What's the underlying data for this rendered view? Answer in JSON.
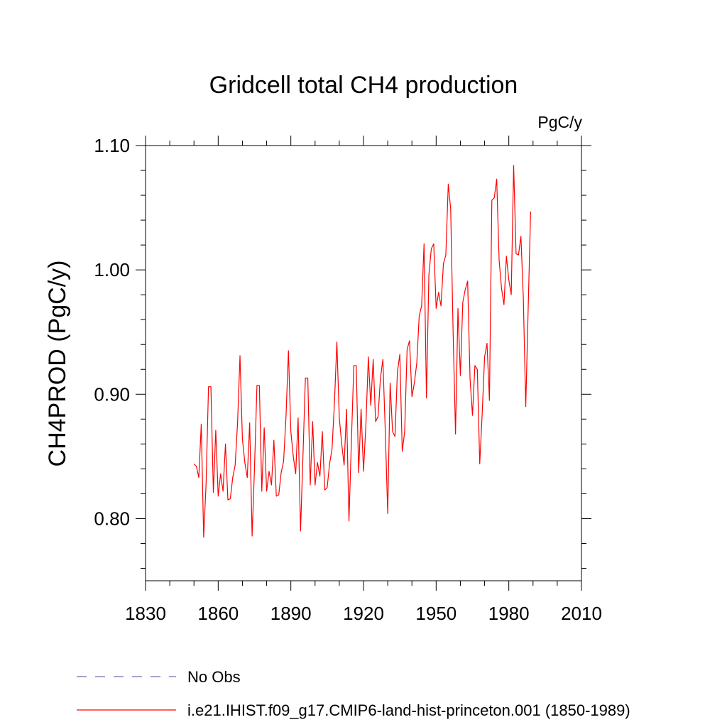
{
  "chart_data": {
    "type": "line",
    "title": "Gridcell total CH4 production",
    "units_label": "PgC/y",
    "ylabel": "CH4PROD  (PgC/y)",
    "xlabel": "",
    "xlim": [
      1830,
      2010
    ],
    "ylim": [
      0.75,
      1.1
    ],
    "x_ticks": [
      1830,
      1860,
      1890,
      1920,
      1950,
      1980,
      2010
    ],
    "x_tick_labels": [
      "1830",
      "1860",
      "1890",
      "1920",
      "1950",
      "1980",
      "2010"
    ],
    "y_ticks": [
      0.8,
      0.9,
      1.0,
      1.1
    ],
    "y_tick_labels": [
      "0.80",
      "0.90",
      "1.00",
      "1.10"
    ],
    "grid": false,
    "legend_position": "bottom-left",
    "series": [
      {
        "name": "No Obs",
        "color": "#7b68b0",
        "style": "dashed",
        "x": [],
        "y": []
      },
      {
        "name": "i.e21.IHIST.f09_g17.CMIP6-land-hist-princeton.001 (1850-1989)",
        "color": "#ff0000",
        "style": "solid",
        "x": [
          1850,
          1851,
          1852,
          1853,
          1854,
          1855,
          1856,
          1857,
          1858,
          1859,
          1860,
          1861,
          1862,
          1863,
          1864,
          1865,
          1866,
          1867,
          1868,
          1869,
          1870,
          1871,
          1872,
          1873,
          1874,
          1875,
          1876,
          1877,
          1878,
          1879,
          1880,
          1881,
          1882,
          1883,
          1884,
          1885,
          1886,
          1887,
          1888,
          1889,
          1890,
          1891,
          1892,
          1893,
          1894,
          1895,
          1896,
          1897,
          1898,
          1899,
          1900,
          1901,
          1902,
          1903,
          1904,
          1905,
          1906,
          1907,
          1908,
          1909,
          1910,
          1911,
          1912,
          1913,
          1914,
          1915,
          1916,
          1917,
          1918,
          1919,
          1920,
          1921,
          1922,
          1923,
          1924,
          1925,
          1926,
          1927,
          1928,
          1929,
          1930,
          1931,
          1932,
          1933,
          1934,
          1935,
          1936,
          1937,
          1938,
          1939,
          1940,
          1941,
          1942,
          1943,
          1944,
          1945,
          1946,
          1947,
          1948,
          1949,
          1950,
          1951,
          1952,
          1953,
          1954,
          1955,
          1956,
          1957,
          1958,
          1959,
          1960,
          1961,
          1962,
          1963,
          1964,
          1965,
          1966,
          1967,
          1968,
          1969,
          1970,
          1971,
          1972,
          1973,
          1974,
          1975,
          1976,
          1977,
          1978,
          1979,
          1980,
          1981,
          1982,
          1983,
          1984,
          1985,
          1986,
          1987,
          1988,
          1989
        ],
        "y": [
          0.844,
          0.842,
          0.833,
          0.876,
          0.785,
          0.828,
          0.906,
          0.906,
          0.821,
          0.871,
          0.818,
          0.836,
          0.822,
          0.86,
          0.815,
          0.816,
          0.833,
          0.843,
          0.877,
          0.931,
          0.864,
          0.845,
          0.833,
          0.877,
          0.786,
          0.841,
          0.907,
          0.907,
          0.822,
          0.873,
          0.822,
          0.838,
          0.827,
          0.863,
          0.818,
          0.819,
          0.837,
          0.846,
          0.882,
          0.935,
          0.87,
          0.85,
          0.836,
          0.881,
          0.79,
          0.85,
          0.913,
          0.913,
          0.827,
          0.878,
          0.827,
          0.845,
          0.834,
          0.87,
          0.823,
          0.825,
          0.844,
          0.856,
          0.893,
          0.942,
          0.881,
          0.86,
          0.843,
          0.888,
          0.798,
          0.862,
          0.923,
          0.923,
          0.837,
          0.888,
          0.838,
          0.876,
          0.93,
          0.891,
          0.928,
          0.878,
          0.882,
          0.913,
          0.928,
          0.87,
          0.804,
          0.909,
          0.87,
          0.866,
          0.918,
          0.932,
          0.854,
          0.87,
          0.936,
          0.943,
          0.898,
          0.909,
          0.925,
          0.963,
          0.971,
          1.021,
          0.897,
          0.996,
          1.017,
          1.021,
          0.969,
          0.982,
          0.971,
          1.005,
          1.012,
          1.069,
          1.049,
          0.95,
          0.868,
          0.969,
          0.915,
          0.974,
          0.984,
          0.991,
          0.912,
          0.883,
          0.923,
          0.92,
          0.844,
          0.884,
          0.93,
          0.941,
          0.895,
          1.056,
          1.058,
          1.073,
          1.008,
          0.985,
          0.972,
          1.011,
          0.992,
          0.98,
          1.084,
          1.013,
          1.012,
          1.027,
          0.977,
          0.89,
          0.969,
          1.047
        ]
      }
    ]
  }
}
